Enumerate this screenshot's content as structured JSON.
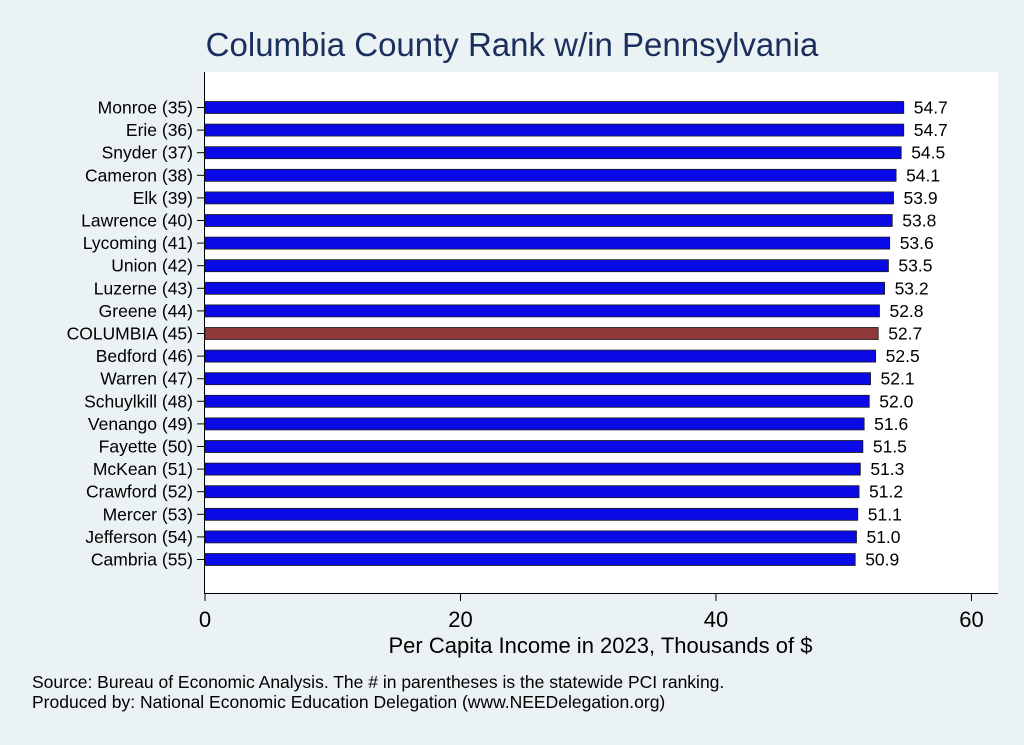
{
  "chart_data": {
    "type": "bar",
    "orientation": "horizontal",
    "title": "Columbia County Rank w/in Pennsylvania",
    "xlabel": "Per Capita Income in 2023, Thousands of $",
    "ylabel": "",
    "xlim": [
      0,
      62
    ],
    "xticks": [
      0,
      20,
      40,
      60
    ],
    "grid": false,
    "categories": [
      "Monroe (35)",
      "Erie (36)",
      "Snyder (37)",
      "Cameron (38)",
      "Elk (39)",
      "Lawrence (40)",
      "Lycoming (41)",
      "Union (42)",
      "Luzerne (43)",
      "Greene (44)",
      "COLUMBIA (45)",
      "Bedford (46)",
      "Warren (47)",
      "Schuylkill (48)",
      "Venango (49)",
      "Fayette (50)",
      "McKean (51)",
      "Crawford (52)",
      "Mercer (53)",
      "Jefferson (54)",
      "Cambria (55)"
    ],
    "values": [
      54.7,
      54.7,
      54.5,
      54.1,
      53.9,
      53.8,
      53.6,
      53.5,
      53.2,
      52.8,
      52.7,
      52.5,
      52.1,
      52.0,
      51.6,
      51.5,
      51.3,
      51.2,
      51.1,
      51.0,
      50.9
    ],
    "value_labels": [
      "54.7",
      "54.7",
      "54.5",
      "54.1",
      "53.9",
      "53.8",
      "53.6",
      "53.5",
      "53.2",
      "52.8",
      "52.7",
      "52.5",
      "52.1",
      "52.0",
      "51.6",
      "51.5",
      "51.3",
      "51.2",
      "51.1",
      "51.0",
      "50.9"
    ],
    "highlight_category": "COLUMBIA (45)",
    "colors": {
      "bar": "#0a0ae6",
      "highlight": "#8f3a3a",
      "title": "#1a2f5e",
      "plot_bg": "#ffffff",
      "page_bg": "#eaf2f3"
    }
  },
  "notes": {
    "source": "Source: Bureau of Economic Analysis. The # in parentheses is the statewide PCI ranking.",
    "produced_by": "Produced by: National Economic Education Delegation (www.NEEDelegation.org)"
  }
}
